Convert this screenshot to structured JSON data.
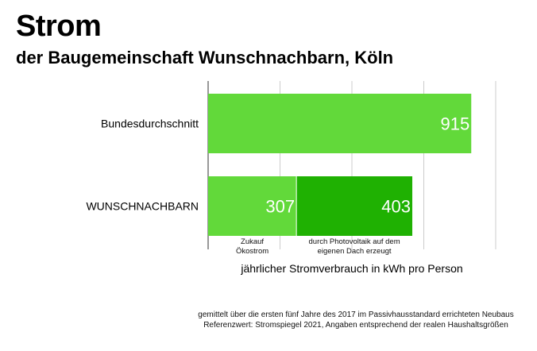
{
  "title": "Strom",
  "subtitle": "der Baugemeinschaft Wunschnachbarn, Köln",
  "chart_data": {
    "type": "bar",
    "orientation": "horizontal",
    "stacked": true,
    "categories": [
      "Bundesdurchschnitt",
      "WUNSCHNACHBARN"
    ],
    "series": [
      {
        "name": "Zukauf Ökostrom",
        "values": [
          915,
          307
        ],
        "color": "#62d93a"
      },
      {
        "name": "durch Photovoltaik auf dem eigenen Dach erzeugt",
        "values": [
          0,
          403
        ],
        "color": "#1fb102"
      }
    ],
    "segment_labels": [
      [
        "Zukauf",
        "Ökostrom"
      ],
      [
        "durch Photovoltaik auf dem",
        "eigenen Dach erzeugt"
      ]
    ],
    "xlabel": "jährlicher Stromverbrauch in kWh pro Person",
    "xlim": [
      0,
      1000
    ],
    "grid_ticks": [
      0,
      250,
      500,
      750,
      1000
    ],
    "grid": true
  },
  "footnotes": [
    "gemittelt über die ersten fünf Jahre des 2017 im Passivhausstandard errichteten Neubaus",
    "Referenzwert: Stromspiegel 2021, Angaben entsprechend der realen Haushaltsgrößen"
  ]
}
